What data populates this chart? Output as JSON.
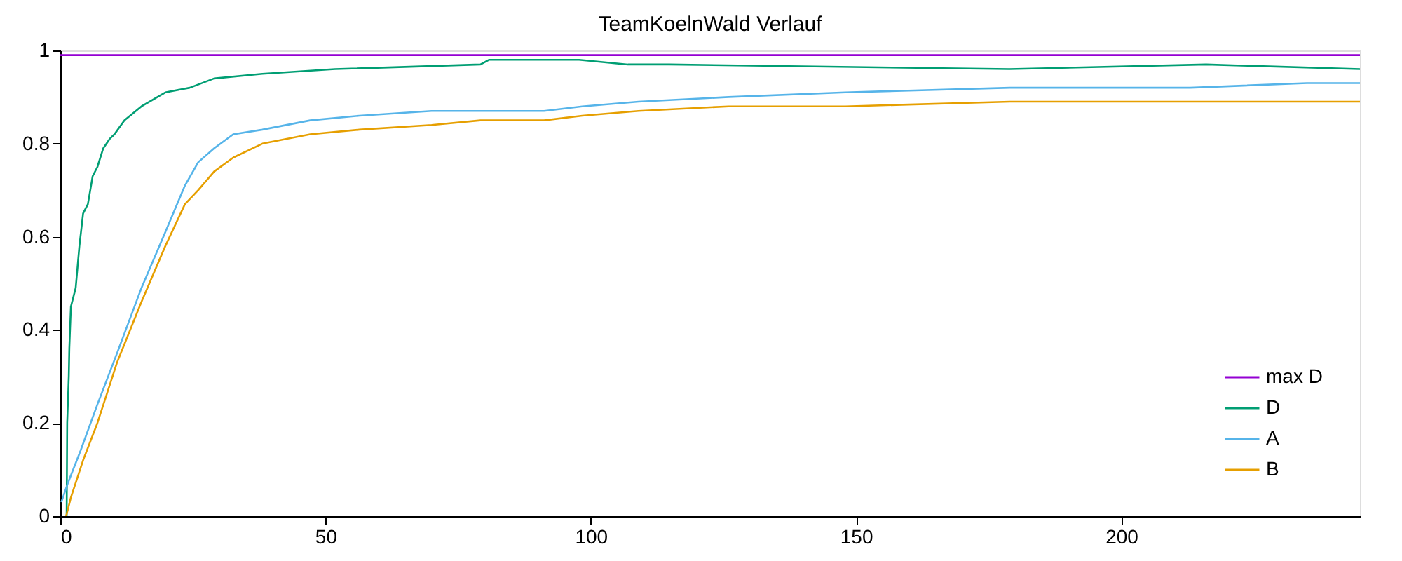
{
  "chart_data": {
    "type": "line",
    "title": "TeamKoelnWald Verlauf",
    "xlim": [
      0,
      245
    ],
    "xticks": [
      0,
      50,
      100,
      150,
      200
    ],
    "ylim": [
      0,
      1
    ],
    "yticks": [
      0,
      0.2,
      0.4,
      0.6,
      0.8,
      1
    ],
    "grid": false,
    "legend": "bottom right",
    "marker": "none",
    "line_style": "solid",
    "series": [
      {
        "name": "max D",
        "color": "#9400d3",
        "x": [
          0,
          245
        ],
        "values": [
          0.99,
          0.99
        ]
      },
      {
        "name": "D",
        "color": "#009e73",
        "x": [
          1.2,
          1.3,
          1.6,
          1.7,
          2.0,
          2.9,
          3.6,
          4.3,
          5.2,
          6.1,
          7.0,
          8.1,
          9.3,
          10.2,
          12.1,
          15.3,
          19.8,
          24.4,
          29,
          38.1,
          51.8,
          79.2,
          80.8,
          97.8,
          107,
          114.8,
          178.9,
          216,
          245
        ],
        "values": [
          0,
          0.2,
          0.3,
          0.36,
          0.45,
          0.49,
          0.58,
          0.65,
          0.67,
          0.73,
          0.75,
          0.79,
          0.81,
          0.82,
          0.85,
          0.88,
          0.91,
          0.92,
          0.94,
          0.95,
          0.96,
          0.97,
          0.98,
          0.98,
          0.97,
          0.97,
          0.96,
          0.97,
          0.96
        ]
      },
      {
        "name": "A",
        "color": "#56b4e9",
        "x": [
          0.2,
          1.4,
          3.8,
          7.0,
          10.7,
          15.3,
          19.8,
          23.5,
          26,
          29,
          32.6,
          38.1,
          47.1,
          56.4,
          70,
          79.2,
          91.2,
          98.4,
          109,
          126,
          148,
          179,
          213,
          235,
          245
        ],
        "values": [
          0.03,
          0.07,
          0.14,
          0.24,
          0.35,
          0.49,
          0.61,
          0.71,
          0.76,
          0.79,
          0.82,
          0.83,
          0.85,
          0.86,
          0.87,
          0.87,
          0.87,
          0.88,
          0.89,
          0.9,
          0.91,
          0.92,
          0.92,
          0.93,
          0.93
        ]
      },
      {
        "name": "B",
        "color": "#e69f00",
        "x": [
          1.1,
          2.0,
          4.3,
          7.0,
          10.7,
          15.3,
          19.8,
          23.5,
          26,
          29,
          32.6,
          38.1,
          47.1,
          56.4,
          70,
          79.2,
          91.2,
          98.4,
          109,
          126,
          148,
          179,
          204,
          245
        ],
        "values": [
          0,
          0.04,
          0.12,
          0.2,
          0.33,
          0.46,
          0.58,
          0.67,
          0.7,
          0.74,
          0.77,
          0.8,
          0.82,
          0.83,
          0.84,
          0.85,
          0.85,
          0.86,
          0.87,
          0.88,
          0.88,
          0.89,
          0.89,
          0.89
        ]
      }
    ]
  }
}
